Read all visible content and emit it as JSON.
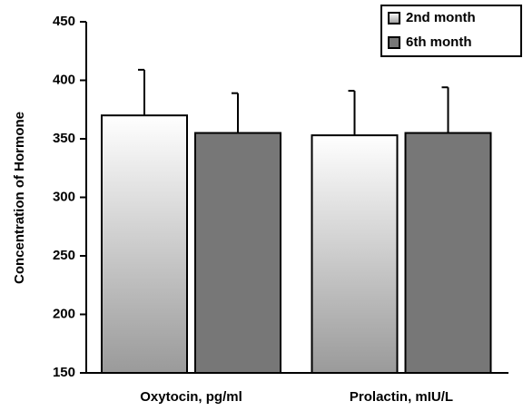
{
  "chart_data": {
    "type": "bar",
    "y_label": "Concentration of Hormone",
    "categories": [
      "Oxytocin, pg/ml",
      "Prolactin, mIU/L"
    ],
    "series": [
      {
        "name": "2nd month",
        "color": "#ffffff",
        "values": [
          370,
          353
        ],
        "errors": [
          39,
          38
        ]
      },
      {
        "name": "6th month",
        "color": "#777777",
        "values": [
          355,
          355
        ],
        "errors": [
          34,
          39
        ]
      }
    ],
    "ylim": [
      150,
      450
    ],
    "yticks": [
      150,
      200,
      250,
      300,
      350,
      400,
      450
    ],
    "grid": false,
    "legend": "upper right"
  }
}
